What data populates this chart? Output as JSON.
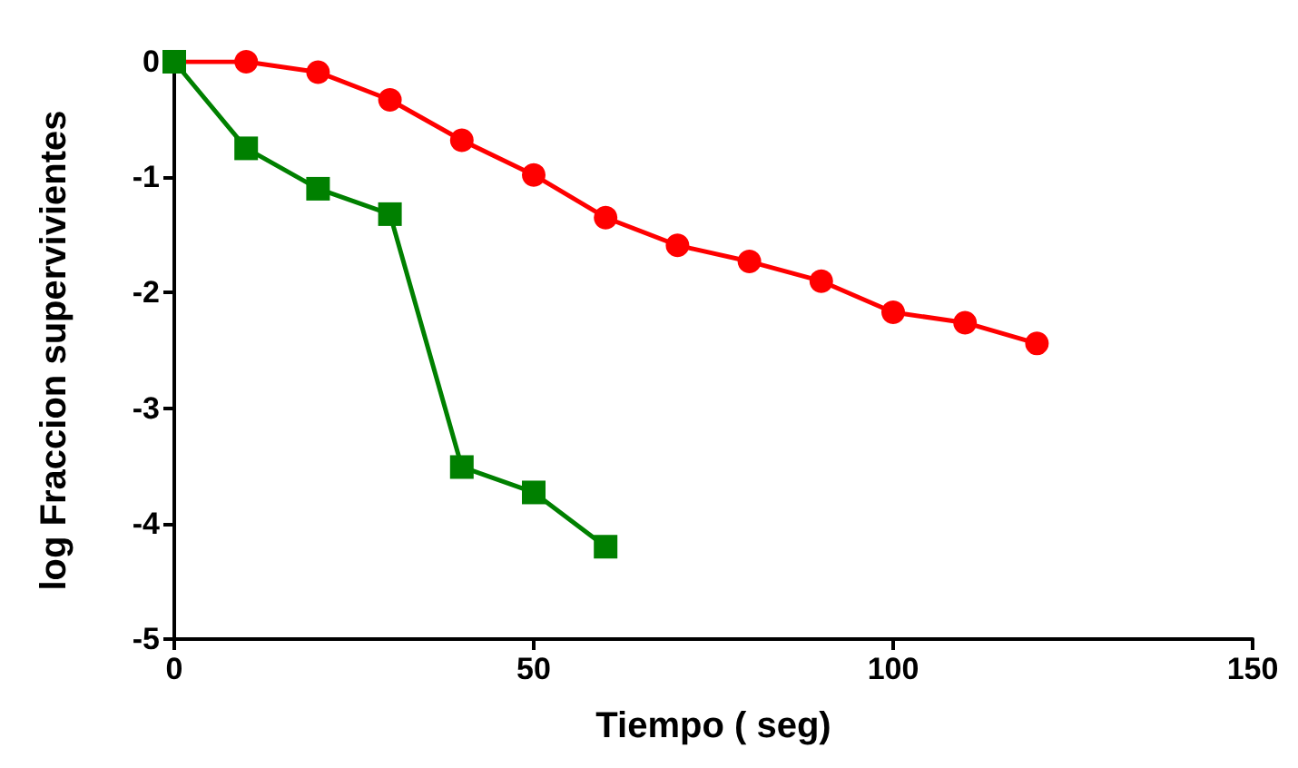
{
  "chart_data": {
    "type": "line",
    "xlabel": "Tiempo ( seg)",
    "ylabel": "log Fraccion supervivientes",
    "xlim": [
      0,
      150
    ],
    "xticks": [
      0,
      50,
      100,
      150
    ],
    "ylim": [
      -5,
      0
    ],
    "yticks": [
      -5,
      -4,
      -3,
      -2,
      -1,
      0
    ],
    "grid": false,
    "line_style": "solid",
    "series": [
      {
        "color": "#ff0000",
        "marker": "circle",
        "x": [
          0,
          10,
          20,
          30,
          40,
          50,
          60,
          70,
          80,
          90,
          100,
          110,
          120
        ],
        "values": [
          0,
          0,
          -0.09,
          -0.33,
          -0.68,
          -0.98,
          -1.35,
          -1.59,
          -1.73,
          -1.9,
          -2.17,
          -2.26,
          -2.44
        ]
      },
      {
        "color": "#008000",
        "marker": "square",
        "x": [
          0,
          10,
          20,
          30,
          40,
          50,
          60
        ],
        "values": [
          0,
          -0.75,
          -1.1,
          -1.32,
          -3.51,
          -3.73,
          -4.2
        ]
      }
    ]
  }
}
